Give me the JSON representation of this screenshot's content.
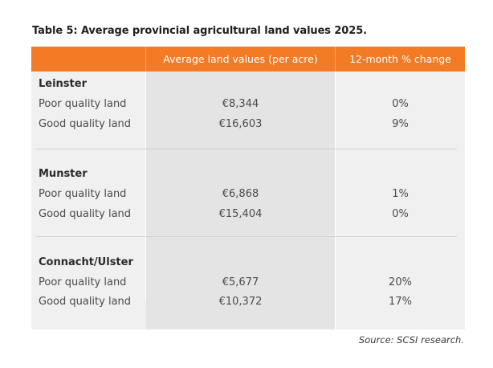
{
  "caption": "Table 5: Average provincial agricultural land values 2025.",
  "table": {
    "headers": [
      "",
      "Average land values (per acre)",
      "12-month % change"
    ],
    "sections": [
      {
        "region": "Leinster",
        "rows": [
          {
            "label": "Poor quality land",
            "value": "€8,344",
            "change": "0%"
          },
          {
            "label": "Good quality land",
            "value": "€16,603",
            "change": "9%"
          }
        ]
      },
      {
        "region": "Munster",
        "rows": [
          {
            "label": "Poor quality land",
            "value": "€6,868",
            "change": "1%"
          },
          {
            "label": "Good quality land",
            "value": "€15,404",
            "change": "0%"
          }
        ]
      },
      {
        "region": "Connacht/Ulster",
        "rows": [
          {
            "label": "Poor quality land",
            "value": "€5,677",
            "change": "20%"
          },
          {
            "label": "Good quality land",
            "value": "€10,372",
            "change": "17%"
          }
        ]
      }
    ]
  },
  "source": "Source: SCSI research.",
  "colors": {
    "header_bg": "#f37b25",
    "table_bg": "#f0f0f0",
    "value_col_bg": "#e4e4e4"
  }
}
